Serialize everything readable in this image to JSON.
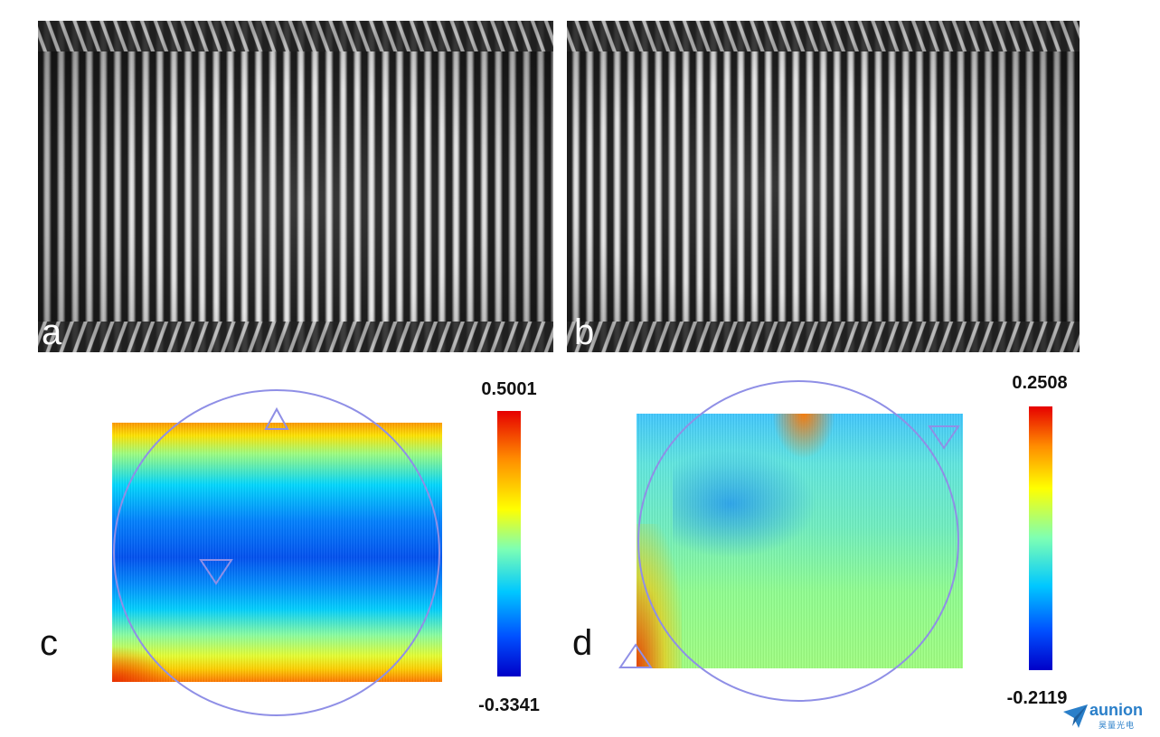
{
  "panels": {
    "a": {
      "label": "a"
    },
    "b": {
      "label": "b"
    },
    "c": {
      "label": "c",
      "colorbar_max": "0.5001",
      "colorbar_min": "-0.3341"
    },
    "d": {
      "label": "d",
      "colorbar_max": "0.2508",
      "colorbar_min": "-0.2119"
    }
  },
  "colors": {
    "circle": "#8f8fe6",
    "colormap": [
      "#0000c8",
      "#0050ff",
      "#00c8ff",
      "#7dffb4",
      "#ffff00",
      "#ff8c00",
      "#e60000"
    ]
  },
  "logo": {
    "name": "aunion",
    "subtitle": "昊量光电",
    "icon": "paper-plane-icon"
  }
}
